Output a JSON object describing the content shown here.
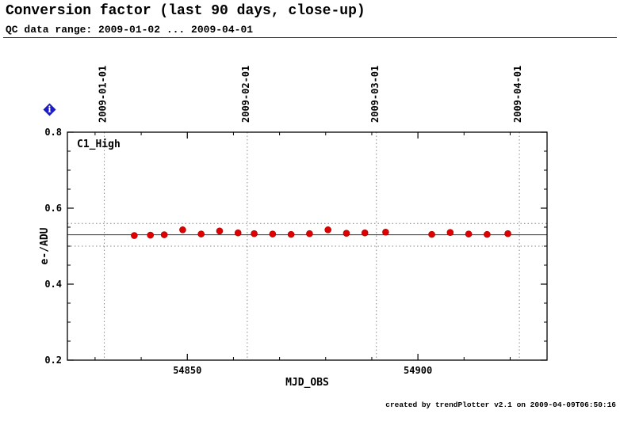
{
  "header": {
    "title": "Conversion factor (last 90 days, close-up)",
    "subtitle": "QC data range: 2009-01-02 ... 2009-04-01",
    "info_glyph": "i"
  },
  "footer": {
    "credit": "created by trendPlotter v2.1 on 2009-04-09T06:50:16"
  },
  "chart_data": {
    "type": "scatter",
    "title": "Conversion factor (last 90 days, close-up)",
    "label": "C1_High",
    "xlabel": "MJD_OBS",
    "ylabel": "e-/ADU",
    "xlim": [
      54824,
      54928
    ],
    "ylim": [
      0.2,
      0.8
    ],
    "xticks": [
      54850,
      54900
    ],
    "yticks": [
      0.2,
      0.4,
      0.6,
      0.8
    ],
    "date_gridlines": [
      {
        "label": "2009-01-01",
        "mjd": 54832
      },
      {
        "label": "2009-02-01",
        "mjd": 54863
      },
      {
        "label": "2009-03-01",
        "mjd": 54891
      },
      {
        "label": "2009-04-01",
        "mjd": 54922
      }
    ],
    "mean_line": 0.53,
    "threshold_lines": [
      0.56,
      0.5
    ],
    "grid_color": "#888888",
    "point_color": "#dd0000",
    "points": [
      {
        "mjd": 54838.5,
        "value": 0.528
      },
      {
        "mjd": 54842.0,
        "value": 0.529
      },
      {
        "mjd": 54845.0,
        "value": 0.53
      },
      {
        "mjd": 54849.0,
        "value": 0.543
      },
      {
        "mjd": 54853.0,
        "value": 0.532
      },
      {
        "mjd": 54857.0,
        "value": 0.54
      },
      {
        "mjd": 54861.0,
        "value": 0.535
      },
      {
        "mjd": 54864.5,
        "value": 0.533
      },
      {
        "mjd": 54868.5,
        "value": 0.532
      },
      {
        "mjd": 54872.5,
        "value": 0.531
      },
      {
        "mjd": 54876.5,
        "value": 0.533
      },
      {
        "mjd": 54880.5,
        "value": 0.543
      },
      {
        "mjd": 54884.5,
        "value": 0.534
      },
      {
        "mjd": 54888.5,
        "value": 0.535
      },
      {
        "mjd": 54893.0,
        "value": 0.537
      },
      {
        "mjd": 54903.0,
        "value": 0.531
      },
      {
        "mjd": 54907.0,
        "value": 0.536
      },
      {
        "mjd": 54911.0,
        "value": 0.532
      },
      {
        "mjd": 54915.0,
        "value": 0.531
      },
      {
        "mjd": 54919.5,
        "value": 0.533
      }
    ]
  }
}
